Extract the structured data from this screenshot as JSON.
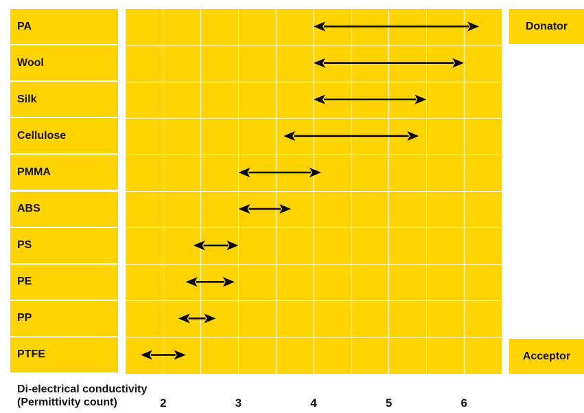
{
  "chart_data": {
    "type": "range",
    "categories": [
      "PA",
      "Wool",
      "Silk",
      "Cellulose",
      "PMMA",
      "ABS",
      "PS",
      "PE",
      "PP",
      "PTFE"
    ],
    "ranges": [
      [
        4.0,
        6.2
      ],
      [
        4.0,
        6.0
      ],
      [
        4.0,
        5.5
      ],
      [
        3.6,
        5.4
      ],
      [
        3.0,
        4.1
      ],
      [
        3.0,
        3.7
      ],
      [
        2.4,
        3.0
      ],
      [
        2.3,
        2.95
      ],
      [
        2.2,
        2.7
      ],
      [
        1.7,
        2.3
      ]
    ],
    "xlim": [
      1.5,
      6.5
    ],
    "xticks": [
      "2",
      "3",
      "4",
      "5",
      "6"
    ],
    "xlabel_line1": "Di-electrical conductivity",
    "xlabel_line2": "(Permittivity count)",
    "top_tag": "Donator",
    "bottom_tag": "Acceptor",
    "colors": {
      "band": "#ffd400",
      "grid": "#ffffff",
      "arrow": "#000000",
      "text": "#141414"
    }
  }
}
